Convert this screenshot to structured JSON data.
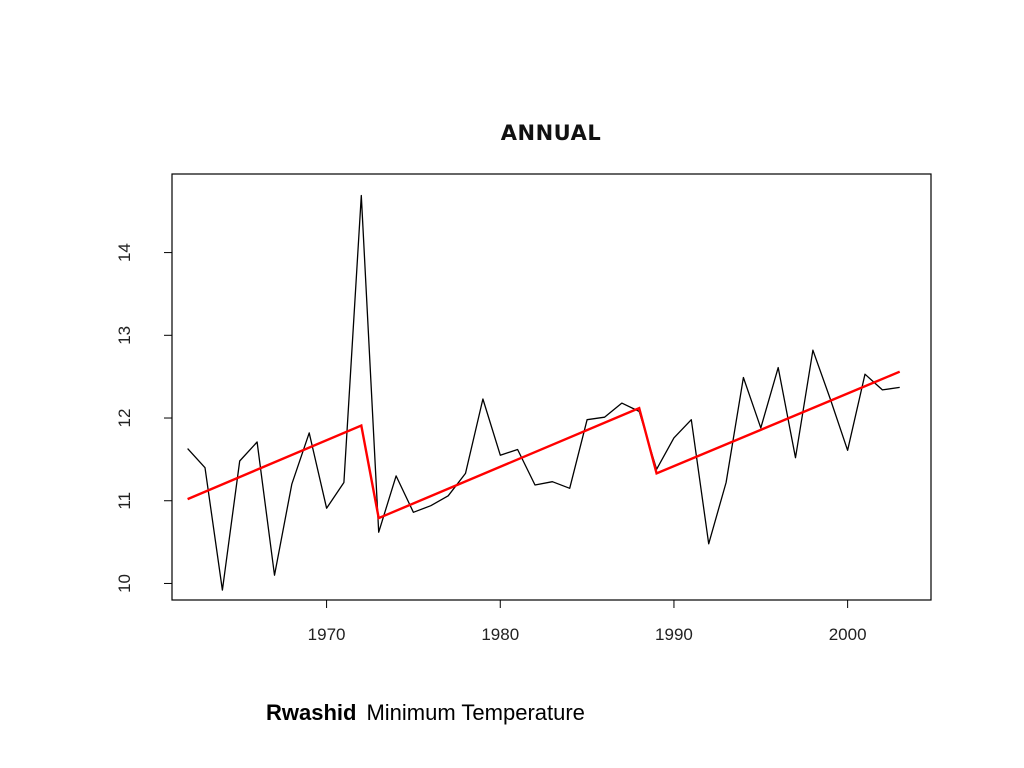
{
  "caption": {
    "station": "Rwashid",
    "variable": "Minimum Temperature"
  },
  "chart_data": {
    "type": "line",
    "title": "ANNUAL",
    "xlabel": "",
    "ylabel": "",
    "xlim": [
      1961.1,
      2004.8
    ],
    "ylim": [
      9.8,
      14.95
    ],
    "xticks": [
      1970,
      1980,
      1990,
      2000
    ],
    "yticks": [
      10,
      11,
      12,
      13,
      14
    ],
    "grid": false,
    "colors": {
      "observed": "#000000",
      "trend": "#ff0000"
    },
    "series": [
      {
        "role": "observed",
        "x": [
          1962,
          1963,
          1964,
          1965,
          1966,
          1967,
          1968,
          1969,
          1970,
          1971,
          1972,
          1973,
          1974,
          1975,
          1976,
          1977,
          1978,
          1979,
          1980,
          1981,
          1982,
          1983,
          1984,
          1985,
          1986,
          1987,
          1988,
          1989,
          1990,
          1991,
          1992,
          1993,
          1994,
          1995,
          1996,
          1997,
          1998,
          1999,
          2000,
          2001,
          2002,
          2003
        ],
        "y": [
          11.63,
          11.4,
          9.92,
          11.48,
          11.71,
          10.1,
          11.2,
          11.82,
          10.91,
          11.22,
          14.69,
          10.62,
          11.3,
          10.86,
          10.94,
          11.06,
          11.33,
          12.23,
          11.55,
          11.62,
          11.19,
          11.23,
          11.15,
          11.98,
          12.01,
          12.18,
          12.08,
          11.38,
          11.76,
          11.98,
          10.48,
          11.22,
          12.49,
          11.88,
          12.61,
          11.52,
          12.82,
          12.23,
          11.61,
          12.53,
          12.34,
          12.37
        ]
      },
      {
        "role": "trend",
        "x": [
          1962,
          1972,
          1973,
          1988,
          1989,
          2003
        ],
        "y": [
          11.02,
          11.91,
          10.79,
          12.12,
          11.33,
          12.56
        ],
        "breaks_after_index": [
          1,
          3
        ]
      }
    ]
  }
}
